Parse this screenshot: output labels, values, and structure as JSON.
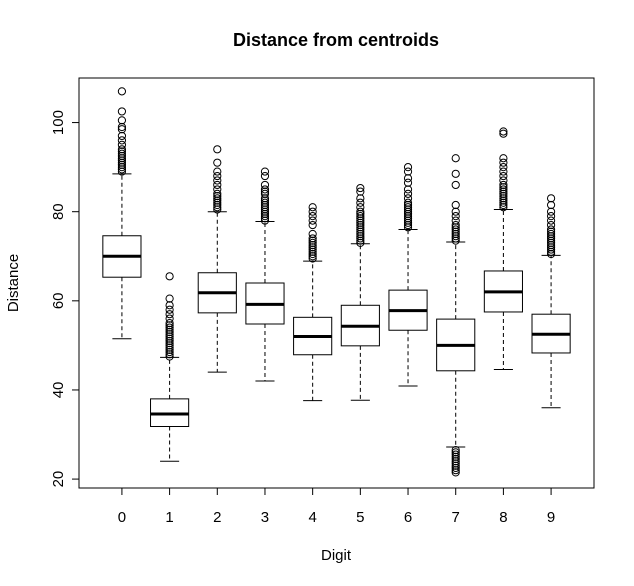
{
  "chart_data": {
    "type": "boxplot",
    "title": "Distance from centroids",
    "xlabel": "Digit",
    "ylabel": "Distance",
    "ylim": [
      18,
      110
    ],
    "yticks": [
      20,
      40,
      60,
      80,
      100
    ],
    "grid": false,
    "legend": "none",
    "categories": [
      "0",
      "1",
      "2",
      "3",
      "4",
      "5",
      "6",
      "7",
      "8",
      "9"
    ],
    "boxes": [
      {
        "category": "0",
        "whisker_low": 51.5,
        "q1": 65.3,
        "median": 70.0,
        "q3": 74.6,
        "whisker_high": 88.5,
        "outliers": [
          89,
          89.5,
          90,
          90.5,
          91,
          91.5,
          92,
          92.5,
          93,
          93.5,
          94,
          95,
          96,
          97,
          98.5,
          99,
          100.5,
          102.5,
          107
        ]
      },
      {
        "category": "1",
        "whisker_low": 24.0,
        "q1": 31.8,
        "median": 34.6,
        "q3": 38.0,
        "whisker_high": 47.3,
        "outliers": [
          47.5,
          48,
          48.5,
          49,
          49.5,
          50,
          50.5,
          51,
          51.5,
          52,
          52.5,
          53,
          53.5,
          54,
          54.5,
          55,
          56,
          57,
          58,
          59,
          60.5,
          65.5
        ]
      },
      {
        "category": "2",
        "whisker_low": 44.0,
        "q1": 57.3,
        "median": 61.8,
        "q3": 66.3,
        "whisker_high": 80.0,
        "outliers": [
          80.5,
          81,
          81.5,
          82,
          82.5,
          83,
          83.5,
          84,
          85,
          86,
          87,
          88,
          89,
          91,
          94
        ]
      },
      {
        "category": "3",
        "whisker_low": 42.0,
        "q1": 54.8,
        "median": 59.2,
        "q3": 64.0,
        "whisker_high": 77.8,
        "outliers": [
          78,
          78.5,
          79,
          79.5,
          80,
          80.5,
          81,
          81.5,
          82,
          82.5,
          83,
          84,
          84.5,
          85,
          86,
          88,
          89
        ]
      },
      {
        "category": "4",
        "whisker_low": 37.6,
        "q1": 47.9,
        "median": 52.0,
        "q3": 56.3,
        "whisker_high": 68.9,
        "outliers": [
          69.5,
          70,
          70.5,
          71,
          71.5,
          72,
          72.5,
          73,
          73.5,
          74,
          75,
          77,
          78,
          79,
          80,
          81
        ]
      },
      {
        "category": "5",
        "whisker_low": 37.7,
        "q1": 49.9,
        "median": 54.3,
        "q3": 59.0,
        "whisker_high": 72.8,
        "outliers": [
          73,
          73.5,
          74,
          74.5,
          75,
          75.5,
          76,
          76.5,
          77,
          77.5,
          78,
          78.5,
          79,
          79.5,
          80,
          81,
          82,
          83,
          84.5,
          85.3
        ]
      },
      {
        "category": "6",
        "whisker_low": 40.9,
        "q1": 53.4,
        "median": 57.8,
        "q3": 62.4,
        "whisker_high": 76.0,
        "outliers": [
          76.5,
          77,
          77.5,
          78,
          78.5,
          79,
          79.5,
          80,
          80.5,
          81,
          81.5,
          82,
          83,
          84,
          85,
          86.5,
          87.5,
          89,
          90
        ]
      },
      {
        "category": "7",
        "whisker_low": 27.2,
        "q1": 44.3,
        "median": 50.0,
        "q3": 55.9,
        "whisker_high": 73.2,
        "outliers": [
          21.5,
          22,
          22.5,
          23,
          23.5,
          24,
          24.5,
          25,
          25.5,
          26,
          26.5,
          73.5,
          74,
          74.5,
          75,
          75.5,
          76,
          76.5,
          77,
          78,
          79,
          80,
          81.5,
          86,
          88.5,
          92
        ]
      },
      {
        "category": "8",
        "whisker_low": 44.6,
        "q1": 57.5,
        "median": 62.0,
        "q3": 66.7,
        "whisker_high": 80.5,
        "outliers": [
          81,
          81.5,
          82,
          82.5,
          83,
          83.5,
          84,
          84.5,
          85,
          85.5,
          86,
          87,
          88,
          89,
          90,
          91,
          92,
          97.5,
          98
        ]
      },
      {
        "category": "9",
        "whisker_low": 36.0,
        "q1": 48.3,
        "median": 52.5,
        "q3": 57.0,
        "whisker_high": 70.2,
        "outliers": [
          70.5,
          71,
          71.5,
          72,
          72.5,
          73,
          73.5,
          74,
          74.5,
          75,
          75.5,
          76,
          77,
          78,
          79,
          80,
          81.5,
          83
        ]
      }
    ]
  }
}
